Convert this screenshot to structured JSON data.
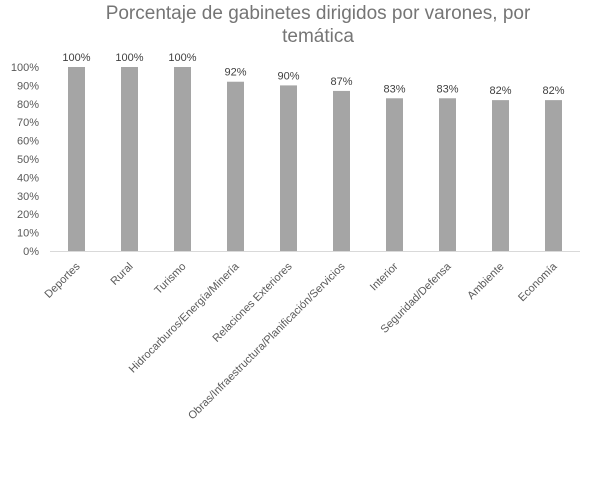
{
  "chart_data": {
    "type": "bar",
    "title": "Porcentaje de gabinetes dirigidos por varones, por temática",
    "title_lines": [
      "Porcentaje de gabinetes dirigidos por varones, por",
      "temática"
    ],
    "categories": [
      "Deportes",
      "Rural",
      "Turismo",
      "Hidrocarburos/Energía/Minería",
      "Relaciones Exteriores",
      "Obras/Infraestructura/Planificación/Servicios",
      "Interior",
      "Seguridad/Defensa",
      "Ambiente",
      "Economía"
    ],
    "values": [
      100,
      100,
      100,
      92,
      90,
      87,
      83,
      83,
      82,
      82
    ],
    "data_labels": [
      "100%",
      "100%",
      "100%",
      "92%",
      "90%",
      "87%",
      "83%",
      "83%",
      "82%",
      "82%"
    ],
    "ylim": [
      0,
      100
    ],
    "yticks": [
      0,
      10,
      20,
      30,
      40,
      50,
      60,
      70,
      80,
      90,
      100
    ],
    "ytick_labels": [
      "0%",
      "10%",
      "20%",
      "30%",
      "40%",
      "50%",
      "60%",
      "70%",
      "80%",
      "90%",
      "100%"
    ],
    "xlabel": "",
    "ylabel": "",
    "grid": false,
    "legend": "none",
    "bar_color": "#a5a5a5"
  }
}
